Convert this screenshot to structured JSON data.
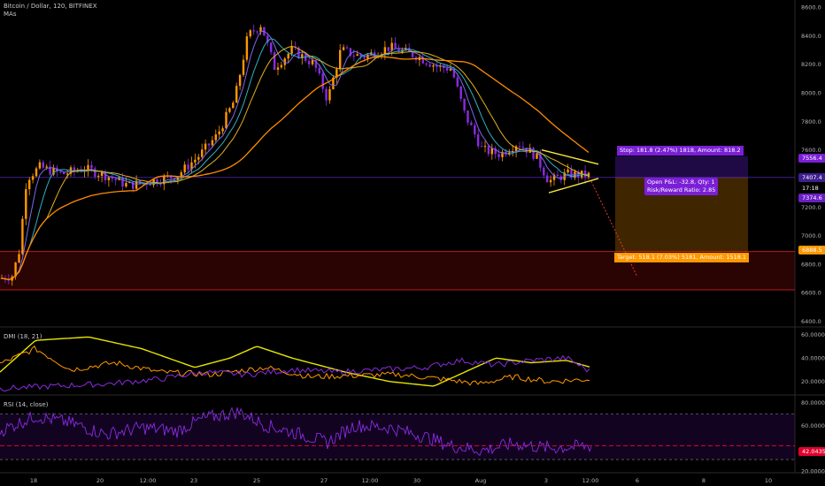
{
  "header": {
    "symbol": "Bitcoin / Dollar, 120, BITFINEX",
    "indicator": "MAs"
  },
  "panes": {
    "dmi_label": "DMI (18, 21)",
    "rsi_label": "RSI (14, close)"
  },
  "position": {
    "stop_label": "Stop: 181.8 (2.47%) 1818, Amount: 818.2",
    "pnl_line1": "Open P&L: -32.8, Qty: 1",
    "pnl_line2": "Risk/Reward Ratio: 2.85",
    "target_label": "Target: 518.1 (7.03%) 5181, Amount: 1518.1",
    "colors": {
      "stop": "#7b1fd6",
      "target": "#ff9800",
      "entry": "#3d1f8f"
    }
  },
  "price_badges": {
    "stop": "7556.4",
    "entry": "7407.4",
    "countdown": "17:18",
    "last": "7374.6",
    "target": "6888.5"
  },
  "rsi_badge": "42.0435",
  "price_axis": [
    "8600.0",
    "8400.0",
    "8200.0",
    "8000.0",
    "7800.0",
    "7600.0",
    "7400.0",
    "7200.0",
    "7000.0",
    "6800.0",
    "6600.0",
    "6400.0"
  ],
  "dmi_axis": [
    "60.0000",
    "40.0000",
    "20.0000"
  ],
  "rsi_axis": [
    "80.0000",
    "60.0000",
    "20.0000"
  ],
  "time_axis": [
    "18",
    "20",
    "12:00",
    "23",
    "25",
    "27",
    "12:00",
    "30",
    "Aug",
    "3",
    "12:00",
    "6",
    "8",
    "10"
  ],
  "chart_data": [
    {
      "type": "line",
      "name": "price",
      "x": [
        "18",
        "20",
        "12:00",
        "23",
        "25",
        "27",
        "12:00",
        "30",
        "Aug",
        "3",
        "12:00"
      ],
      "series": [
        {
          "values": [
            6720,
            7450,
            7330,
            7560,
            8420,
            8150,
            7980,
            8150,
            7900,
            7600,
            7480
          ]
        }
      ],
      "ylim": [
        6360,
        8650
      ],
      "colors": {
        "up": "#ff9800",
        "down": "#8a2be2",
        "ma_fast": "#7b68ee",
        "ma_mid": "#e0b020",
        "ma_slow": "#ff8c00"
      }
    },
    {
      "type": "line",
      "name": "DMI (18, 21)",
      "x": [
        "18",
        "20",
        "12:00",
        "23",
        "25",
        "27",
        "12:00",
        "30",
        "Aug",
        "3",
        "12:00"
      ],
      "series": [
        {
          "values": [
            22,
            55,
            50,
            30,
            45,
            30,
            22,
            18,
            40,
            35,
            28
          ],
          "color": "#e6e600"
        },
        {
          "values": [
            28,
            45,
            32,
            25,
            38,
            28,
            22,
            20,
            22,
            26,
            22
          ],
          "color": "#ff9800"
        },
        {
          "values": [
            12,
            14,
            20,
            28,
            22,
            26,
            30,
            28,
            34,
            36,
            27
          ],
          "color": "#8a2be2"
        }
      ],
      "ylim": [
        10,
        65
      ]
    },
    {
      "type": "line",
      "name": "RSI (14, close)",
      "x": [
        "18",
        "20",
        "12:00",
        "23",
        "25",
        "27",
        "12:00",
        "30",
        "Aug",
        "3",
        "12:00"
      ],
      "series": [
        {
          "values": [
            55,
            68,
            50,
            62,
            70,
            55,
            48,
            58,
            40,
            38,
            42
          ],
          "color": "#8a2be2"
        }
      ],
      "ylim": [
        20,
        85
      ],
      "bands": {
        "upper": 70,
        "lower": 30,
        "last": 42.0435
      }
    }
  ]
}
